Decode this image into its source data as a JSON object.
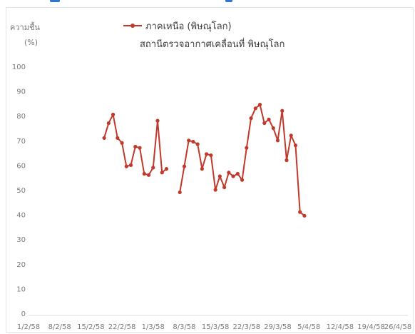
{
  "chart_data": {
    "type": "line",
    "ylabel_line1": "ความชื้น",
    "ylabel_line2": "(%)",
    "legend": {
      "series_name": "ภาคเหนือ (พิษณุโลก)",
      "subtitle": "สถานีตรวจอากาศเคลื่อนที่ พิษณุโลก"
    },
    "ylim": [
      0,
      100
    ],
    "yticks": [
      "0",
      "10",
      "20",
      "30",
      "40",
      "50",
      "60",
      "70",
      "80",
      "90",
      "100"
    ],
    "xlim": [
      0,
      83
    ],
    "xticks": [
      {
        "day": 0,
        "label": "1/2/58"
      },
      {
        "day": 7,
        "label": "8/2/58"
      },
      {
        "day": 14,
        "label": "15/2/58"
      },
      {
        "day": 21,
        "label": "22/2/58"
      },
      {
        "day": 28,
        "label": "1/3/58"
      },
      {
        "day": 35,
        "label": "8/3/58"
      },
      {
        "day": 42,
        "label": "15/3/58"
      },
      {
        "day": 49,
        "label": "22/3/58"
      },
      {
        "day": 56,
        "label": "29/3/58"
      },
      {
        "day": 63,
        "label": "5/4/58"
      },
      {
        "day": 70,
        "label": "12/4/58"
      },
      {
        "day": 77,
        "label": "19/4/58"
      },
      {
        "day": 83,
        "label": "26/4/58"
      }
    ],
    "grid": false,
    "color": "#c0392b",
    "series": [
      {
        "name": "ภาคเหนือ (พิษณุโลก)",
        "segments": [
          [
            {
              "x": 17,
              "y": 71
            },
            {
              "x": 18,
              "y": 77
            },
            {
              "x": 19,
              "y": 80.5
            },
            {
              "x": 20,
              "y": 71
            },
            {
              "x": 21,
              "y": 69
            },
            {
              "x": 22,
              "y": 59.5
            },
            {
              "x": 23,
              "y": 60
            },
            {
              "x": 24,
              "y": 67.5
            },
            {
              "x": 25,
              "y": 67
            },
            {
              "x": 26,
              "y": 56.5
            },
            {
              "x": 27,
              "y": 56
            },
            {
              "x": 28,
              "y": 59
            },
            {
              "x": 29,
              "y": 78
            },
            {
              "x": 30,
              "y": 57
            },
            {
              "x": 31,
              "y": 58.5
            }
          ],
          [
            {
              "x": 34,
              "y": 49
            },
            {
              "x": 35,
              "y": 59.5
            },
            {
              "x": 36,
              "y": 70
            },
            {
              "x": 37,
              "y": 69.5
            },
            {
              "x": 38,
              "y": 68.5
            },
            {
              "x": 39,
              "y": 58.5
            },
            {
              "x": 40,
              "y": 64.5
            },
            {
              "x": 41,
              "y": 64
            },
            {
              "x": 42,
              "y": 50
            },
            {
              "x": 43,
              "y": 55.5
            },
            {
              "x": 44,
              "y": 51
            },
            {
              "x": 45,
              "y": 57
            },
            {
              "x": 46,
              "y": 55.5
            },
            {
              "x": 47,
              "y": 56.5
            },
            {
              "x": 48,
              "y": 54
            },
            {
              "x": 49,
              "y": 67
            },
            {
              "x": 50,
              "y": 79
            },
            {
              "x": 51,
              "y": 83
            },
            {
              "x": 52,
              "y": 84.5
            },
            {
              "x": 53,
              "y": 77
            },
            {
              "x": 54,
              "y": 78.5
            },
            {
              "x": 55,
              "y": 75
            },
            {
              "x": 56,
              "y": 70
            },
            {
              "x": 57,
              "y": 82
            },
            {
              "x": 58,
              "y": 62
            },
            {
              "x": 59,
              "y": 72
            },
            {
              "x": 60,
              "y": 68
            },
            {
              "x": 61,
              "y": 41
            },
            {
              "x": 62,
              "y": 39.5
            }
          ]
        ]
      }
    ]
  }
}
